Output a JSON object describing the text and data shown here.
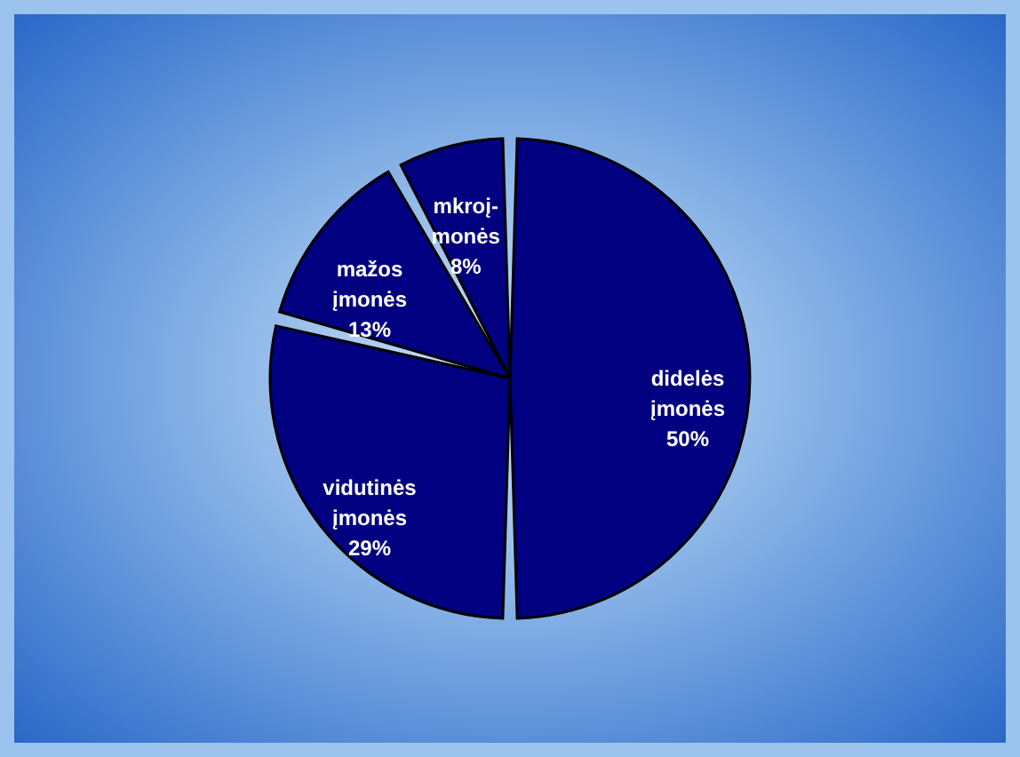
{
  "chart_data": {
    "type": "pie",
    "categories": [
      "didelės įmonės",
      "vidutinės įmonės",
      "mažos įmonės",
      "mkroį-monės"
    ],
    "values": [
      50,
      29,
      13,
      8
    ],
    "colors": [
      "#000080",
      "#000080",
      "#000080",
      "#000080"
    ],
    "value_labels": [
      "50%",
      "29%",
      "13%",
      "8%"
    ]
  }
}
